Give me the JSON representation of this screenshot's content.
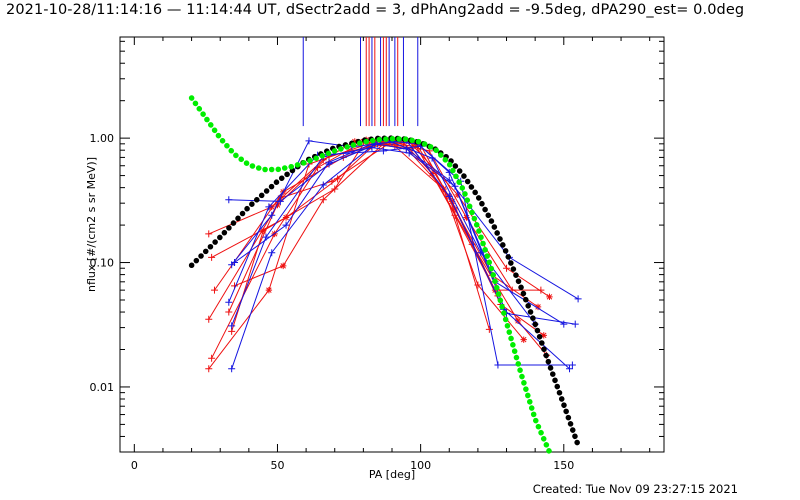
{
  "header": {
    "title": "2021-10-28/11:14:16 — 11:14:44 UT, dSectr2add = 3, dPhAng2add = -9.5deg, dPA290_est=  0.0deg"
  },
  "footer": {
    "created": "Created: Tue Nov 09 23:27:15 2021"
  },
  "chart_data": {
    "type": "line",
    "xlabel": "PA [deg]",
    "ylabel": "nflux [#/(cm2 s sr MeV)]",
    "x_scale": "linear",
    "y_scale": "log",
    "xlim": [
      -5,
      185
    ],
    "ylim": [
      0.003,
      6.5
    ],
    "x_ticks": [
      0,
      50,
      100,
      150
    ],
    "x_tick_labels": [
      "0",
      "50",
      "100",
      "150"
    ],
    "y_ticks": [
      0.01,
      0.1,
      1.0
    ],
    "y_tick_labels": [
      "0.01",
      "0.10",
      "1.00"
    ],
    "grid": false,
    "legend": "none",
    "colors": {
      "red": "#ee1111",
      "blue": "#1515e0",
      "black": "#000000",
      "green": "#00ee00"
    },
    "vertical_markers": [
      {
        "x": 59,
        "color": "blue"
      },
      {
        "x": 79,
        "color": "blue"
      },
      {
        "x": 81,
        "color": "red"
      },
      {
        "x": 82,
        "color": "red"
      },
      {
        "x": 83,
        "color": "blue"
      },
      {
        "x": 84,
        "color": "red"
      },
      {
        "x": 86,
        "color": "blue"
      },
      {
        "x": 87,
        "color": "red"
      },
      {
        "x": 88,
        "color": "red"
      },
      {
        "x": 89,
        "color": "blue"
      },
      {
        "x": 91,
        "color": "blue"
      },
      {
        "x": 92,
        "color": "red"
      },
      {
        "x": 94,
        "color": "blue"
      },
      {
        "x": 99,
        "color": "blue"
      }
    ],
    "series": [
      {
        "color": "black",
        "style": "fit",
        "x": [
          20,
          30,
          40,
          50,
          60,
          70,
          80,
          85,
          90,
          95,
          100,
          105,
          110,
          115,
          120,
          125,
          130,
          135,
          140,
          145,
          150,
          155
        ],
        "y": [
          0.095,
          0.16,
          0.28,
          0.45,
          0.66,
          0.84,
          0.96,
          0.995,
          1.0,
          0.98,
          0.92,
          0.82,
          0.68,
          0.5,
          0.34,
          0.21,
          0.12,
          0.064,
          0.032,
          0.015,
          0.0072,
          0.0034
        ]
      },
      {
        "color": "green",
        "style": "fit",
        "x": [
          20,
          25,
          30,
          35,
          40,
          45,
          50,
          55,
          60,
          65,
          70,
          75,
          80,
          85,
          90,
          95,
          100,
          105,
          110,
          115,
          120,
          125,
          130,
          135,
          140,
          145
        ],
        "y": [
          2.1,
          1.45,
          1.0,
          0.74,
          0.61,
          0.56,
          0.56,
          0.59,
          0.64,
          0.71,
          0.79,
          0.86,
          0.93,
          0.97,
          0.99,
          0.98,
          0.93,
          0.82,
          0.62,
          0.38,
          0.19,
          0.085,
          0.033,
          0.013,
          0.0055,
          0.003
        ]
      },
      {
        "color": "red",
        "x": [
          26,
          48,
          66,
          77,
          88,
          98,
          112,
          126,
          142
        ],
        "y": [
          0.17,
          0.28,
          0.67,
          0.94,
          0.96,
          0.9,
          0.24,
          0.06,
          0.06
        ]
      },
      {
        "color": "red",
        "x": [
          27,
          53,
          71,
          84,
          95,
          108,
          125,
          141
        ],
        "y": [
          0.11,
          0.23,
          0.47,
          0.89,
          0.83,
          0.39,
          0.079,
          0.044
        ]
      },
      {
        "color": "red",
        "x": [
          28,
          52,
          73,
          88,
          100,
          112,
          128,
          143
        ],
        "y": [
          0.06,
          0.37,
          0.7,
          0.96,
          0.88,
          0.27,
          0.046,
          0.026
        ]
      },
      {
        "color": "red",
        "x": [
          26,
          50,
          68,
          82,
          94,
          104,
          118,
          134,
          144
        ],
        "y": [
          0.035,
          0.29,
          0.72,
          0.85,
          0.92,
          0.52,
          0.14,
          0.034,
          0.018
        ]
      },
      {
        "color": "red",
        "x": [
          27,
          49,
          64,
          80,
          91,
          108,
          120,
          136
        ],
        "y": [
          0.017,
          0.17,
          0.58,
          0.94,
          0.86,
          0.39,
          0.066,
          0.024
        ]
      },
      {
        "color": "red",
        "x": [
          26,
          47,
          61,
          86,
          96,
          113,
          130,
          145
        ],
        "y": [
          0.014,
          0.06,
          0.62,
          0.97,
          0.94,
          0.35,
          0.09,
          0.053
        ]
      },
      {
        "color": "red",
        "x": [
          35,
          52,
          66,
          87,
          99,
          111,
          127
        ],
        "y": [
          0.065,
          0.094,
          0.32,
          0.9,
          0.86,
          0.31,
          0.054
        ]
      },
      {
        "color": "red",
        "x": [
          34,
          45,
          70,
          81,
          97,
          110,
          124
        ],
        "y": [
          0.028,
          0.18,
          0.39,
          0.97,
          0.83,
          0.34,
          0.029
        ]
      },
      {
        "color": "red",
        "x": [
          33,
          51,
          69,
          90,
          103,
          116,
          132
        ],
        "y": [
          0.04,
          0.33,
          0.45,
          0.94,
          0.79,
          0.23,
          0.06
        ]
      },
      {
        "color": "blue",
        "x": [
          33,
          51,
          68,
          85,
          95,
          110,
          129,
          152
        ],
        "y": [
          0.32,
          0.31,
          0.62,
          0.9,
          0.96,
          0.34,
          0.042,
          0.014
        ]
      },
      {
        "color": "blue",
        "x": [
          34,
          48,
          61,
          76,
          90,
          104,
          121,
          140
        ],
        "y": [
          0.096,
          0.24,
          0.95,
          0.85,
          0.93,
          0.69,
          0.12,
          0.032
        ]
      },
      {
        "color": "blue",
        "x": [
          33,
          47,
          64,
          87,
          100,
          114,
          127,
          153
        ],
        "y": [
          0.048,
          0.28,
          0.73,
          0.79,
          0.86,
          0.45,
          0.015,
          0.015
        ]
      },
      {
        "color": "blue",
        "x": [
          34,
          46,
          66,
          83,
          96,
          112,
          130,
          154
        ],
        "y": [
          0.031,
          0.16,
          0.71,
          0.84,
          0.76,
          0.41,
          0.039,
          0.032
        ]
      },
      {
        "color": "blue",
        "x": [
          34,
          48,
          66,
          84,
          95,
          110,
          131,
          155
        ],
        "y": [
          0.014,
          0.12,
          0.42,
          0.9,
          0.82,
          0.46,
          0.11,
          0.051
        ]
      },
      {
        "color": "blue",
        "x": [
          35,
          53,
          68,
          86,
          99,
          110,
          126,
          150
        ],
        "y": [
          0.1,
          0.2,
          0.64,
          0.96,
          0.9,
          0.53,
          0.07,
          0.032
        ]
      }
    ]
  }
}
